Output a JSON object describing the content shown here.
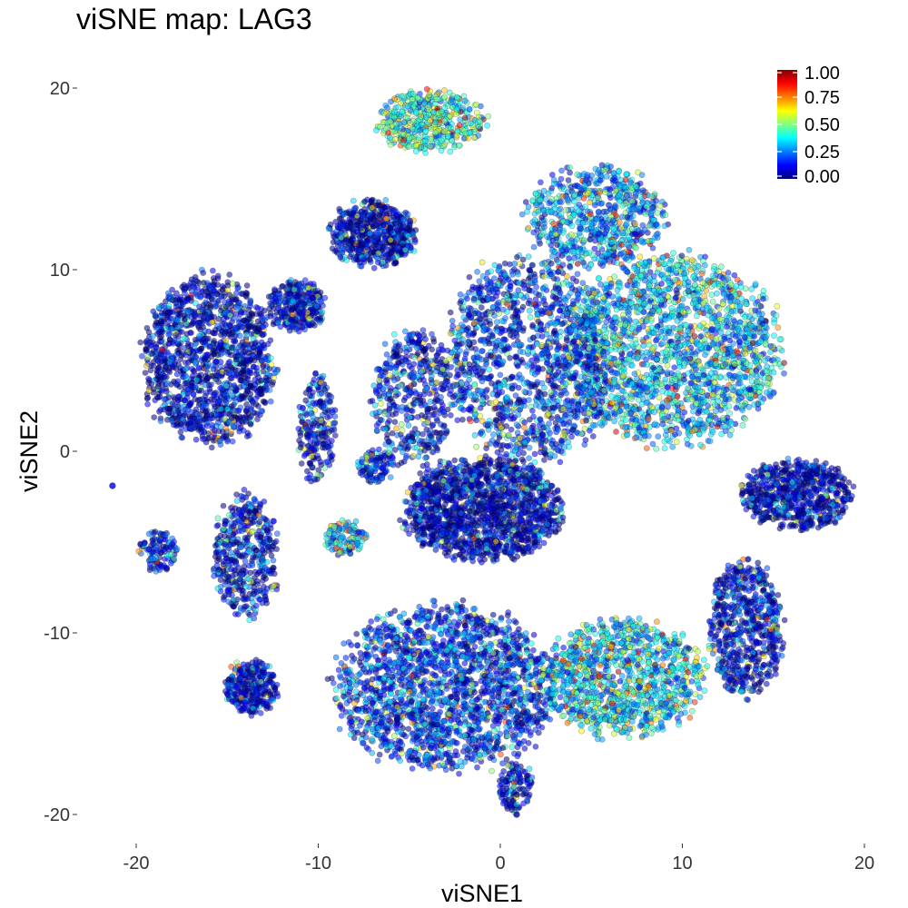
{
  "chart_data": {
    "type": "scatter",
    "title": "viSNE map: LAG3",
    "xlabel": "viSNE1",
    "ylabel": "viSNE2",
    "xlim": [
      -22.5,
      20.5
    ],
    "ylim": [
      -21.8,
      21.8
    ],
    "x_ticks": [
      -20,
      -10,
      0,
      10,
      20
    ],
    "y_ticks": [
      -20,
      -10,
      0,
      10,
      20
    ],
    "grid": false,
    "legend_position": "top-right",
    "colorscale": {
      "name": "jet",
      "range": [
        0,
        1
      ],
      "ticks": [
        "1.00",
        "0.75",
        "0.50",
        "0.25",
        "0.00"
      ],
      "colors": [
        "#00007f",
        "#0000ff",
        "#007fff",
        "#00ffff",
        "#7fff7f",
        "#ffff00",
        "#ff7f00",
        "#ff0000",
        "#7f0000"
      ]
    },
    "series": [
      {
        "clusters": [
          {
            "cx": -16.0,
            "cy": 5.0,
            "rx": 3.6,
            "ry": 4.6,
            "n": 1400,
            "level": 0.06
          },
          {
            "cx": -11.2,
            "cy": 8.0,
            "rx": 1.6,
            "ry": 1.4,
            "n": 300,
            "level": 0.08
          },
          {
            "cx": -7.0,
            "cy": 12.0,
            "rx": 2.4,
            "ry": 1.8,
            "n": 600,
            "level": 0.07
          },
          {
            "cx": -3.8,
            "cy": 18.2,
            "rx": 2.9,
            "ry": 1.7,
            "n": 450,
            "level": 0.42
          },
          {
            "cx": 5.2,
            "cy": 13.0,
            "rx": 3.8,
            "ry": 2.8,
            "n": 700,
            "level": 0.28
          },
          {
            "cx": 9.5,
            "cy": 5.5,
            "rx": 6.0,
            "ry": 5.2,
            "n": 2000,
            "level": 0.32
          },
          {
            "cx": 1.5,
            "cy": 5.0,
            "rx": 4.5,
            "ry": 5.8,
            "n": 1400,
            "level": 0.16
          },
          {
            "cx": -4.8,
            "cy": 3.0,
            "rx": 2.2,
            "ry": 3.8,
            "n": 450,
            "level": 0.1
          },
          {
            "cx": -1.0,
            "cy": -3.2,
            "rx": 4.3,
            "ry": 2.8,
            "n": 1500,
            "level": 0.05
          },
          {
            "cx": 16.3,
            "cy": -2.4,
            "rx": 3.0,
            "ry": 1.9,
            "n": 700,
            "level": 0.05
          },
          {
            "cx": 13.5,
            "cy": -9.8,
            "rx": 2.0,
            "ry": 3.8,
            "n": 650,
            "level": 0.08
          },
          {
            "cx": -3.0,
            "cy": -13.0,
            "rx": 6.0,
            "ry": 4.6,
            "n": 2000,
            "level": 0.16
          },
          {
            "cx": 6.8,
            "cy": -12.5,
            "rx": 4.4,
            "ry": 3.2,
            "n": 1100,
            "level": 0.35
          },
          {
            "cx": -13.7,
            "cy": -13.0,
            "rx": 1.5,
            "ry": 1.5,
            "n": 300,
            "level": 0.08
          },
          {
            "cx": -14.0,
            "cy": -5.8,
            "rx": 1.8,
            "ry": 3.4,
            "n": 450,
            "level": 0.1
          },
          {
            "cx": -18.8,
            "cy": -5.5,
            "rx": 1.0,
            "ry": 1.2,
            "n": 120,
            "level": 0.15
          },
          {
            "cx": -10.1,
            "cy": 1.2,
            "rx": 1.0,
            "ry": 3.0,
            "n": 220,
            "level": 0.08
          },
          {
            "cx": -8.5,
            "cy": -4.8,
            "rx": 1.2,
            "ry": 1.0,
            "n": 120,
            "level": 0.3
          },
          {
            "cx": -6.8,
            "cy": -0.8,
            "rx": 1.0,
            "ry": 0.9,
            "n": 110,
            "level": 0.15
          },
          {
            "cx": 0.8,
            "cy": -18.5,
            "rx": 1.0,
            "ry": 1.4,
            "n": 130,
            "level": 0.1
          }
        ],
        "outliers": [
          [
            -21.3,
            -1.9,
            0.1
          ],
          [
            0.9,
            -20.0,
            0.05
          ]
        ]
      }
    ]
  }
}
